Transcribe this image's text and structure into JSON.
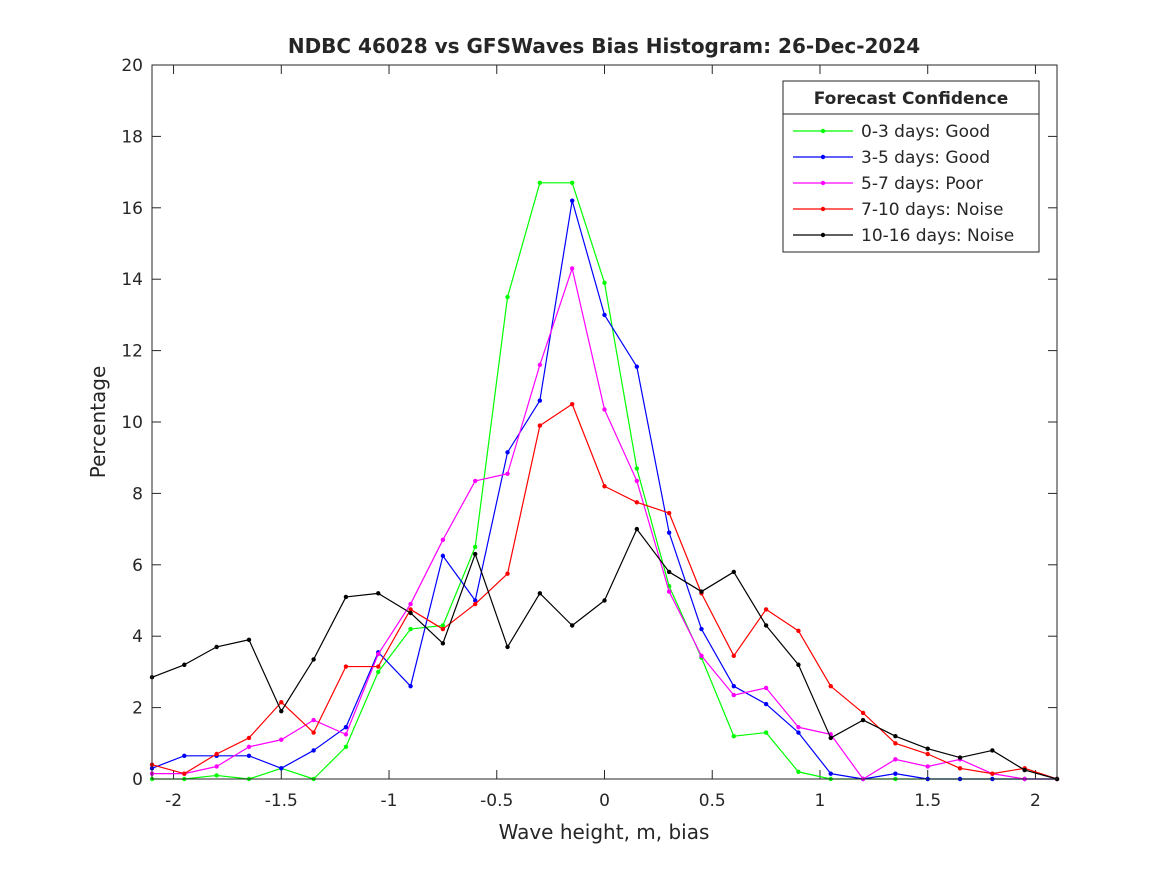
{
  "chart_data": {
    "type": "line",
    "title": "NDBC 46028 vs GFSWaves Bias Histogram: 26-Dec-2024",
    "xlabel": "Wave height, m, bias",
    "ylabel": "Percentage",
    "xlim": [
      -2.1,
      2.1
    ],
    "ylim": [
      0,
      20
    ],
    "xticks": [
      -2,
      -1.5,
      -1,
      -0.5,
      0,
      0.5,
      1,
      1.5,
      2
    ],
    "xtick_labels": [
      "-2",
      "-1.5",
      "-1",
      "-0.5",
      "0",
      "0.5",
      "1",
      "1.5",
      "2"
    ],
    "yticks": [
      0,
      2,
      4,
      6,
      8,
      10,
      12,
      14,
      16,
      18,
      20
    ],
    "ytick_labels": [
      "0",
      "2",
      "4",
      "6",
      "8",
      "10",
      "12",
      "14",
      "16",
      "18",
      "20"
    ],
    "legend": {
      "title": "Forecast Confidence",
      "position": "top-right"
    },
    "x": [
      -2.1,
      -1.95,
      -1.8,
      -1.65,
      -1.5,
      -1.35,
      -1.2,
      -1.05,
      -0.9,
      -0.75,
      -0.6,
      -0.45,
      -0.3,
      -0.15,
      0,
      0.15,
      0.3,
      0.45,
      0.6,
      0.75,
      0.9,
      1.05,
      1.2,
      1.35,
      1.5,
      1.65,
      1.8,
      1.95,
      2.1
    ],
    "series": [
      {
        "name": "0-3 days: Good",
        "color": "#00ff00",
        "values": [
          0,
          0,
          0.1,
          0,
          0.3,
          0,
          0.9,
          3.0,
          4.2,
          4.3,
          6.5,
          13.5,
          16.7,
          16.7,
          13.9,
          8.7,
          5.4,
          3.4,
          1.2,
          1.3,
          0.2,
          0,
          0,
          0,
          0,
          0,
          0,
          0,
          0
        ]
      },
      {
        "name": "3-5 days: Good",
        "color": "#0000ff",
        "values": [
          0.3,
          0.65,
          0.65,
          0.65,
          0.3,
          0.8,
          1.45,
          3.55,
          2.6,
          6.25,
          5.0,
          9.15,
          10.6,
          16.2,
          13.0,
          11.55,
          6.9,
          4.2,
          2.6,
          2.1,
          1.3,
          0.15,
          0,
          0.15,
          0,
          0,
          0,
          0,
          0
        ]
      },
      {
        "name": "5-7 days: Poor",
        "color": "#ff00ff",
        "values": [
          0.15,
          0.15,
          0.35,
          0.9,
          1.1,
          1.65,
          1.25,
          3.5,
          4.9,
          6.7,
          8.35,
          8.55,
          11.6,
          14.3,
          10.35,
          8.35,
          5.25,
          3.45,
          2.35,
          2.55,
          1.45,
          1.25,
          0,
          0.55,
          0.35,
          0.55,
          0.15,
          0,
          0
        ]
      },
      {
        "name": "7-10 days: Noise",
        "color": "#ff0000",
        "values": [
          0.4,
          0.15,
          0.7,
          1.15,
          2.15,
          1.3,
          3.15,
          3.15,
          4.75,
          4.2,
          4.9,
          5.75,
          9.9,
          10.5,
          8.2,
          7.75,
          7.45,
          5.2,
          3.45,
          4.75,
          4.15,
          2.6,
          1.85,
          1.0,
          0.7,
          0.3,
          0.15,
          0.3,
          0
        ]
      },
      {
        "name": "10-16 days: Noise",
        "color": "#000000",
        "values": [
          2.85,
          3.2,
          3.7,
          3.9,
          1.9,
          3.35,
          5.1,
          5.2,
          4.65,
          3.8,
          6.3,
          3.7,
          5.2,
          4.3,
          5.0,
          7.0,
          5.8,
          5.25,
          5.8,
          4.3,
          3.2,
          1.15,
          1.65,
          1.2,
          0.85,
          0.6,
          0.8,
          0.25,
          0
        ]
      }
    ]
  }
}
